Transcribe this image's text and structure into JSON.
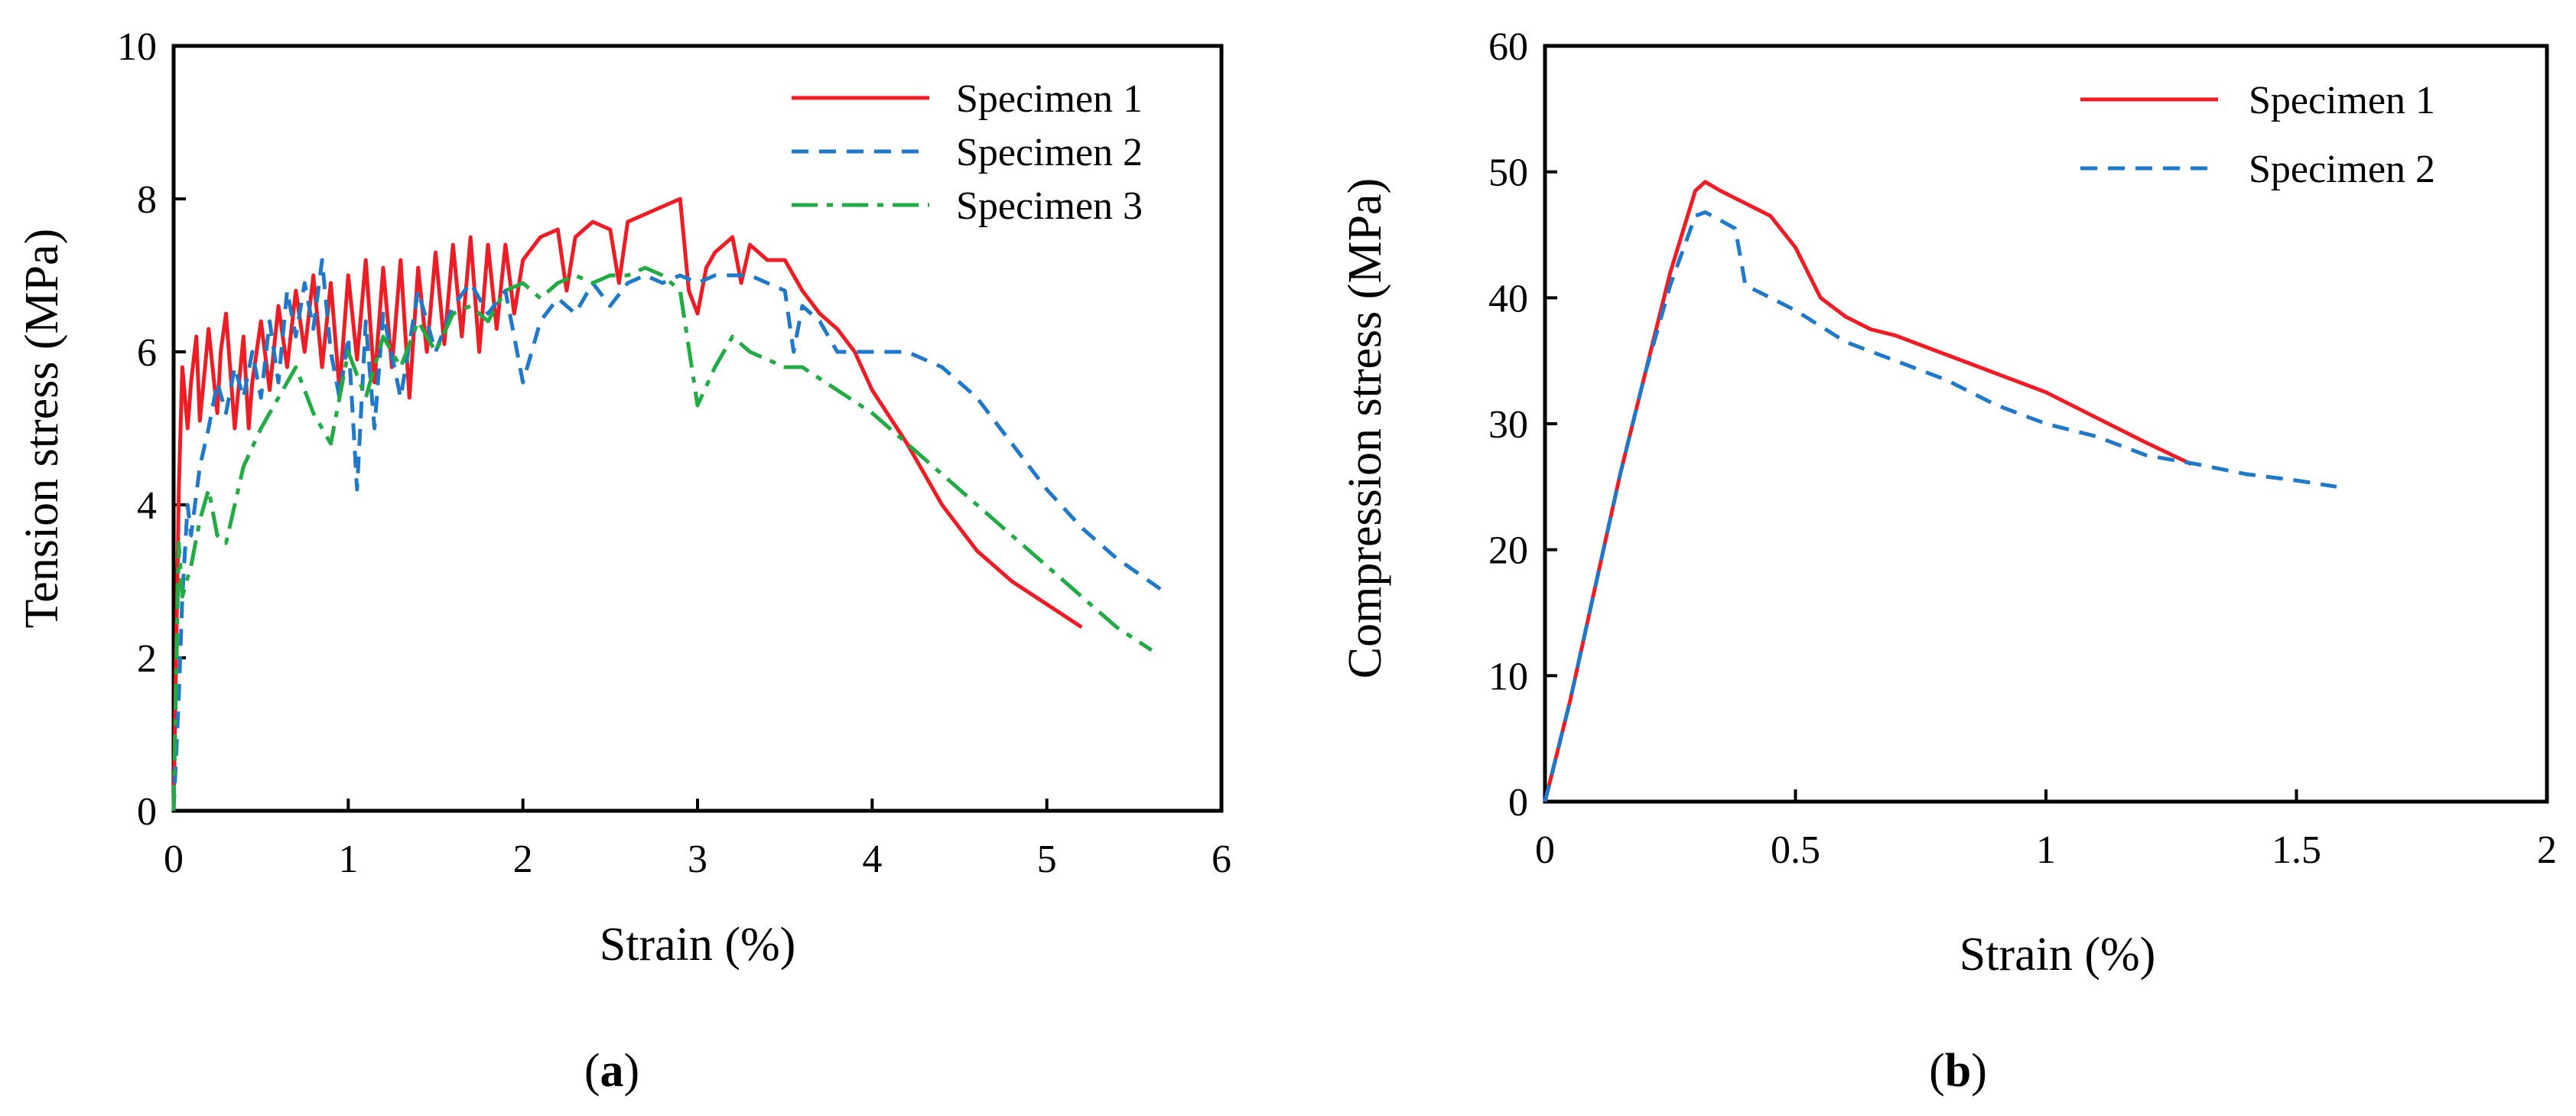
{
  "chart_data": [
    {
      "type": "line",
      "panel_label": "a",
      "title": "",
      "xlabel": "Strain  (%)",
      "ylabel": "Tension stress (MPa)",
      "xlim": [
        0,
        6
      ],
      "ylim": [
        0,
        10
      ],
      "xticks": [
        0,
        1,
        2,
        3,
        4,
        5,
        6
      ],
      "yticks": [
        0,
        2,
        4,
        6,
        8,
        10
      ],
      "grid": false,
      "legend_position": "top-right",
      "series": [
        {
          "name": "Specimen 1",
          "color": "#ee1c24",
          "style": "solid",
          "x": [
            0,
            0.03,
            0.05,
            0.08,
            0.1,
            0.13,
            0.15,
            0.18,
            0.2,
            0.25,
            0.27,
            0.3,
            0.35,
            0.4,
            0.43,
            0.45,
            0.5,
            0.55,
            0.6,
            0.65,
            0.7,
            0.75,
            0.8,
            0.85,
            0.9,
            0.95,
            1.0,
            1.05,
            1.1,
            1.15,
            1.2,
            1.25,
            1.3,
            1.35,
            1.4,
            1.45,
            1.5,
            1.55,
            1.6,
            1.65,
            1.7,
            1.75,
            1.8,
            1.85,
            1.9,
            1.95,
            2.0,
            2.1,
            2.2,
            2.25,
            2.3,
            2.4,
            2.5,
            2.55,
            2.6,
            2.7,
            2.8,
            2.9,
            2.95,
            3.0,
            3.05,
            3.1,
            3.2,
            3.25,
            3.3,
            3.4,
            3.5,
            3.6,
            3.7,
            3.8,
            3.9,
            4.0,
            4.2,
            4.4,
            4.6,
            4.8,
            5.0,
            5.2
          ],
          "y": [
            0,
            4.2,
            5.8,
            5.0,
            5.6,
            6.2,
            5.1,
            5.8,
            6.3,
            5.2,
            6.0,
            6.5,
            5.0,
            6.2,
            5.0,
            5.6,
            6.4,
            5.5,
            6.6,
            5.8,
            6.8,
            6.0,
            7.0,
            5.8,
            6.9,
            5.5,
            7.0,
            5.9,
            7.2,
            5.6,
            7.1,
            5.8,
            7.2,
            5.4,
            7.1,
            6.0,
            7.3,
            6.1,
            7.4,
            6.2,
            7.5,
            6.0,
            7.4,
            6.3,
            7.4,
            6.5,
            7.2,
            7.5,
            7.6,
            6.8,
            7.5,
            7.7,
            7.6,
            6.9,
            7.7,
            7.8,
            7.9,
            8.0,
            6.8,
            6.5,
            7.1,
            7.3,
            7.5,
            6.9,
            7.4,
            7.2,
            7.2,
            6.8,
            6.5,
            6.3,
            6.0,
            5.5,
            4.8,
            4.0,
            3.4,
            3.0,
            2.7,
            2.4
          ]
        },
        {
          "name": "Specimen 2",
          "color": "#1f78c8",
          "style": "dashed",
          "x": [
            0,
            0.03,
            0.05,
            0.08,
            0.1,
            0.15,
            0.2,
            0.25,
            0.3,
            0.35,
            0.4,
            0.45,
            0.5,
            0.55,
            0.6,
            0.65,
            0.7,
            0.75,
            0.8,
            0.85,
            0.9,
            0.95,
            1.0,
            1.05,
            1.1,
            1.15,
            1.2,
            1.3,
            1.4,
            1.5,
            1.6,
            1.7,
            1.8,
            1.9,
            2.0,
            2.1,
            2.2,
            2.3,
            2.4,
            2.5,
            2.6,
            2.7,
            2.8,
            2.9,
            3.0,
            3.1,
            3.2,
            3.3,
            3.4,
            3.5,
            3.55,
            3.6,
            3.7,
            3.8,
            4.0,
            4.2,
            4.4,
            4.6,
            4.8,
            5.0,
            5.2,
            5.4,
            5.65
          ],
          "y": [
            0,
            1.5,
            2.8,
            4.0,
            3.6,
            4.5,
            5.0,
            5.6,
            5.2,
            5.8,
            5.4,
            6.0,
            5.4,
            6.4,
            5.6,
            6.8,
            6.2,
            6.9,
            6.3,
            7.2,
            6.0,
            5.4,
            6.2,
            4.2,
            6.4,
            5.0,
            6.5,
            5.4,
            6.8,
            6.0,
            6.6,
            6.9,
            6.5,
            6.8,
            5.6,
            6.4,
            6.7,
            6.5,
            6.9,
            6.6,
            6.9,
            7.0,
            6.9,
            7.0,
            6.9,
            7.0,
            7.0,
            7.0,
            6.9,
            6.8,
            6.0,
            6.6,
            6.4,
            6.0,
            6.0,
            6.0,
            5.8,
            5.4,
            4.8,
            4.2,
            3.7,
            3.3,
            2.9
          ]
        },
        {
          "name": "Specimen 3",
          "color": "#22aa44",
          "style": "dashdot",
          "x": [
            0,
            0.03,
            0.05,
            0.1,
            0.15,
            0.2,
            0.25,
            0.3,
            0.35,
            0.4,
            0.5,
            0.6,
            0.7,
            0.8,
            0.9,
            1.0,
            1.1,
            1.2,
            1.3,
            1.4,
            1.5,
            1.6,
            1.7,
            1.8,
            1.9,
            2.0,
            2.1,
            2.2,
            2.3,
            2.4,
            2.5,
            2.6,
            2.7,
            2.8,
            2.9,
            3.0,
            3.1,
            3.2,
            3.3,
            3.4,
            3.5,
            3.6,
            3.8,
            4.0,
            4.2,
            4.4,
            4.6,
            4.8,
            5.0,
            5.2,
            5.4,
            5.6
          ],
          "y": [
            0,
            3.5,
            2.8,
            3.2,
            3.8,
            4.2,
            3.6,
            3.5,
            4.0,
            4.5,
            5.0,
            5.4,
            5.8,
            5.2,
            4.8,
            6.0,
            5.4,
            6.2,
            5.8,
            6.4,
            6.0,
            6.5,
            6.6,
            6.4,
            6.8,
            6.9,
            6.7,
            6.9,
            7.0,
            6.9,
            7.0,
            7.0,
            7.1,
            7.0,
            6.8,
            5.3,
            5.8,
            6.2,
            6.0,
            5.9,
            5.8,
            5.8,
            5.5,
            5.2,
            4.8,
            4.4,
            4.0,
            3.6,
            3.2,
            2.8,
            2.4,
            2.1
          ]
        }
      ]
    },
    {
      "type": "line",
      "panel_label": "b",
      "title": "",
      "xlabel": "Strain (%)",
      "ylabel": "Compression stress (MPa)",
      "xlim": [
        0,
        2
      ],
      "ylim": [
        0,
        60
      ],
      "xticks": [
        0,
        0.5,
        1,
        1.5,
        2
      ],
      "xtick_labels": [
        "0",
        "0.5",
        "1",
        "1.5",
        "2"
      ],
      "yticks": [
        0,
        10,
        20,
        30,
        40,
        50,
        60
      ],
      "grid": false,
      "legend_position": "top-right",
      "series": [
        {
          "name": "Specimen 1",
          "color": "#ee1c24",
          "style": "solid",
          "x": [
            0,
            0.05,
            0.1,
            0.15,
            0.2,
            0.25,
            0.3,
            0.32,
            0.35,
            0.4,
            0.45,
            0.5,
            0.55,
            0.6,
            0.65,
            0.7,
            0.8,
            0.9,
            1.0,
            1.1,
            1.2,
            1.29
          ],
          "y": [
            0,
            8,
            17,
            26,
            34,
            42,
            48.5,
            49.2,
            48.5,
            47.5,
            46.5,
            44,
            40,
            38.5,
            37.5,
            37,
            35.5,
            34,
            32.5,
            30.5,
            28.5,
            26.8
          ]
        },
        {
          "name": "Specimen 2",
          "color": "#1f78c8",
          "style": "dashed",
          "x": [
            0,
            0.05,
            0.1,
            0.15,
            0.2,
            0.25,
            0.3,
            0.32,
            0.38,
            0.4,
            0.45,
            0.5,
            0.6,
            0.7,
            0.8,
            0.9,
            1.0,
            1.1,
            1.2,
            1.3,
            1.4,
            1.5,
            1.58
          ],
          "y": [
            0,
            8,
            17,
            26,
            34,
            41,
            46.5,
            46.8,
            45.5,
            41,
            40,
            39,
            36.5,
            35,
            33.5,
            31.5,
            30,
            29,
            27.5,
            26.8,
            26,
            25.5,
            25
          ]
        }
      ]
    }
  ]
}
